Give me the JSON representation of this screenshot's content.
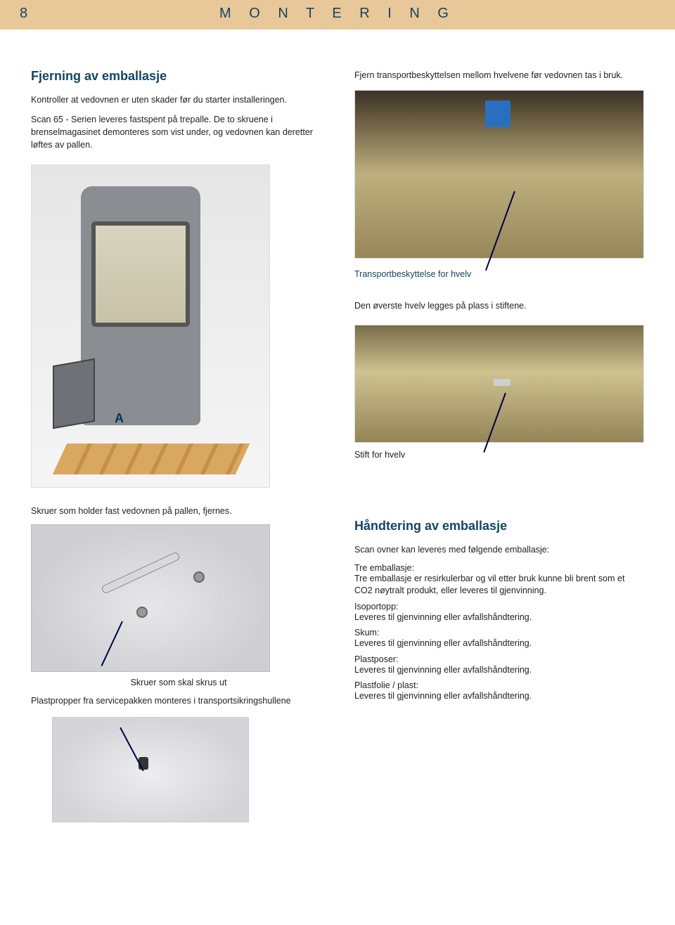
{
  "header": {
    "page_number": "8",
    "title": "M O N T E R I N G",
    "bar_color": "#e8c798",
    "title_color": "#134563"
  },
  "left": {
    "section_title": "Fjerning av emballasje",
    "p1": "Kontroller at vedovnen er uten skader før du starter installeringen.",
    "p2": "Scan 65 - Serien leveres fastspent på trepalle. De to skruene i brenselmagasinet demonteres som vist under, og vedovnen kan deretter løftes av pallen.",
    "stove_letter": "A",
    "screws_heading": "Skruer som holder fast vedovnen på pallen, fjernes.",
    "screws_label": "Skruer som skal skrus ut",
    "plugs_text": "Plastpropper fra servicepakken monteres i transportsikringshullene"
  },
  "right": {
    "p1": "Fjern transportbeskyttelsen mellom hvelvene før vedovnen tas i bruk.",
    "photo1_label": "Transportbeskyttelse for hvelv",
    "p2": "Den øverste hvelv legges på plass i stiftene.",
    "photo2_label": "Stift for hvelv",
    "handling_title": "Håndtering av emballasje",
    "handling_intro": "Scan ovner kan leveres med følgende emballasje:",
    "items": [
      {
        "term": "Tre emballasje:",
        "body": "Tre emballasje er resirkulerbar og vil etter bruk kunne bli brent som et CO2 nøytralt produkt, eller leveres til gjenvinning."
      },
      {
        "term": "Isoportopp:",
        "body": "Leveres til gjenvinning eller avfallshåndtering."
      },
      {
        "term": "Skum:",
        "body": "Leveres til gjenvinning eller avfallshåndtering."
      },
      {
        "term": "Plastposer:",
        "body": "Leveres til gjenvinning eller avfallshåndtering."
      },
      {
        "term": "Plastfolie / plast:",
        "body": "Leveres til gjenvinning eller avfallshåndtering."
      }
    ]
  },
  "colors": {
    "heading": "#134563",
    "body": "#222222",
    "arrow": "#00003a"
  }
}
